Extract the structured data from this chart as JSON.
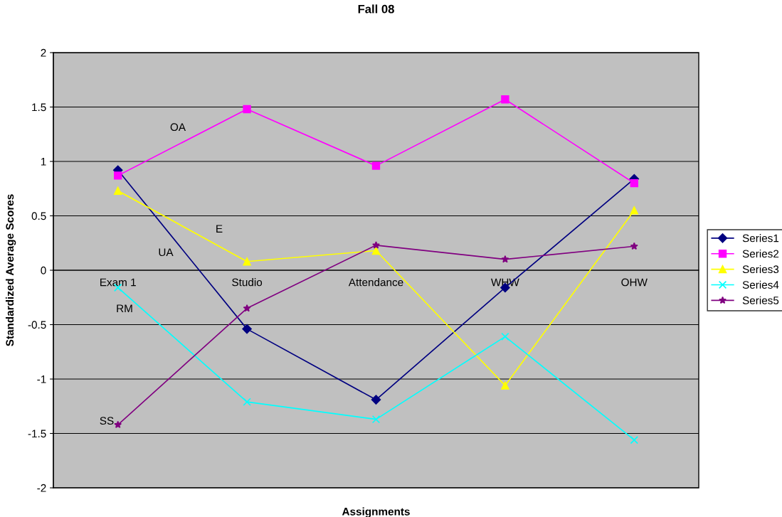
{
  "chart_data": {
    "type": "line",
    "title": "Fall 08",
    "xlabel": "Assignments",
    "ylabel": "Standardized Average Scores",
    "categories": [
      "Exam 1",
      "Studio",
      "Attendance",
      "WHW",
      "OHW"
    ],
    "series": [
      {
        "name": "Series1",
        "color": "#000080",
        "marker": "diamond",
        "values": [
          0.92,
          -0.54,
          -1.19,
          -0.16,
          0.84
        ]
      },
      {
        "name": "Series2",
        "color": "#ff00ff",
        "marker": "square",
        "values": [
          0.87,
          1.48,
          0.96,
          1.57,
          0.8
        ]
      },
      {
        "name": "Series3",
        "color": "#ffff00",
        "marker": "triangle",
        "values": [
          0.73,
          0.08,
          0.18,
          -1.06,
          0.55
        ]
      },
      {
        "name": "Series4",
        "color": "#00ffff",
        "marker": "cross",
        "values": [
          -0.16,
          -1.21,
          -1.37,
          -0.61,
          -1.56
        ]
      },
      {
        "name": "Series5",
        "color": "#800080",
        "marker": "star",
        "values": [
          -1.42,
          -0.35,
          0.23,
          0.1,
          0.22
        ]
      }
    ],
    "annotations": [
      "OA",
      "E",
      "UA",
      "RM",
      "SS"
    ],
    "ylim": [
      -2,
      2
    ],
    "yticks": [
      -2,
      -1.5,
      -1,
      -0.5,
      0,
      0.5,
      1,
      1.5,
      2
    ],
    "grid": "y",
    "legend": "right"
  }
}
